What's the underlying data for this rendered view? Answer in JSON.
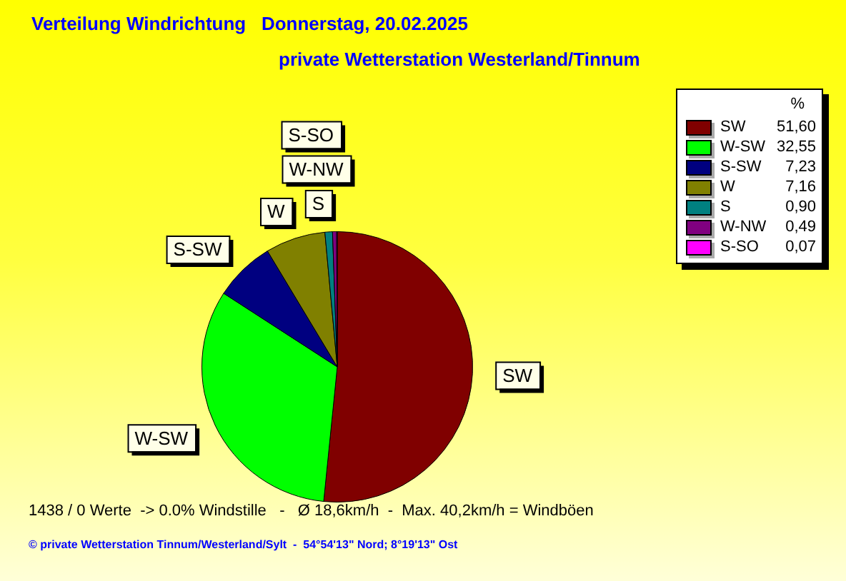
{
  "chart_data": {
    "type": "pie",
    "title": "Verteilung Windrichtung   Donnerstag, 20.02.2025",
    "subtitle": "private Wetterstation Westerland/Tinnum",
    "legend_title": "%",
    "legend": "top right",
    "categories": [
      "SW",
      "W-SW",
      "S-SW",
      "W",
      "S",
      "W-NW",
      "S-SO"
    ],
    "values": [
      51.6,
      32.55,
      7.23,
      7.16,
      0.9,
      0.49,
      0.07
    ],
    "value_labels": [
      "51,60",
      "32,55",
      "7,23",
      "7,16",
      "0,90",
      "0,49",
      "0,07"
    ],
    "colors": [
      "#800000",
      "#00ff00",
      "#000080",
      "#808000",
      "#008080",
      "#800080",
      "#ff00ff"
    ],
    "annotations": [
      "1438 / 0 Werte  -> 0.0% Windstille   -   Ø 18,6km/h  -  Max. 40,2km/h = Windböen",
      "© private Wetterstation Tinnum/Westerland/Sylt  -  54°54'13\" Nord; 8°19'13\" Ost"
    ]
  }
}
